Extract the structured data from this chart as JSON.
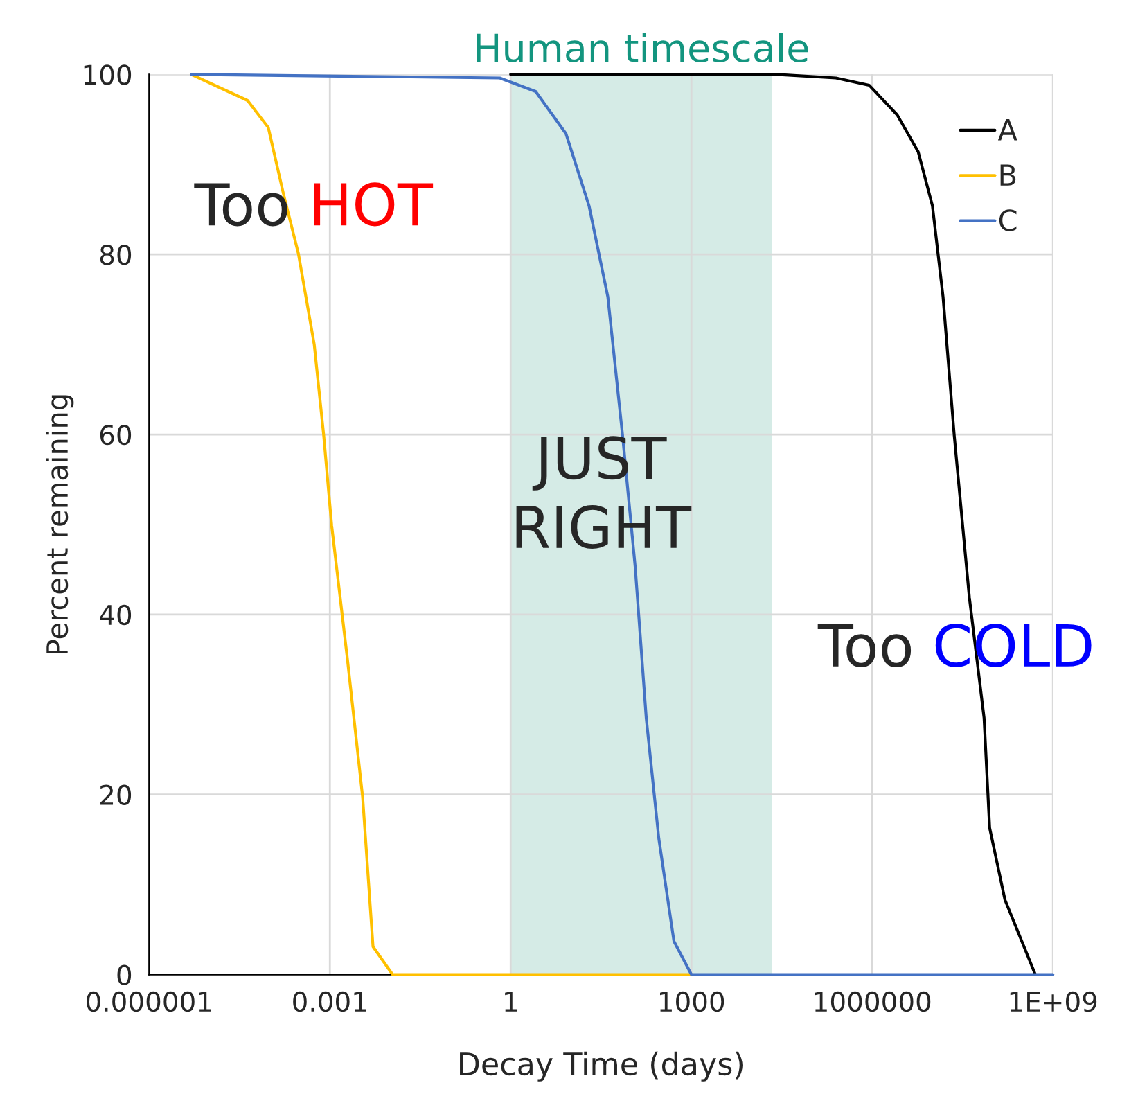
{
  "chart_data": {
    "type": "line",
    "xlabel": "Decay Time (days)",
    "ylabel": "Percent remaining",
    "log": "x",
    "xlim": [
      1e-06,
      1000000000
    ],
    "xticks": [
      {
        "value": 1e-06,
        "label": "0.000001"
      },
      0.001,
      1,
      1000,
      1000000,
      {
        "value": 1000000000,
        "label": "1E+09"
      }
    ],
    "ylim": [
      0,
      100
    ],
    "yticks": [
      0,
      20,
      40,
      60,
      80,
      100
    ],
    "grid": true,
    "legend": "top right",
    "series": [
      {
        "name": "A",
        "color": "#000000",
        "x": [
          1,
          26000,
          250000,
          890000,
          2600000,
          5800000,
          10000000,
          15000000,
          23000000,
          41000000,
          72000000,
          89000000,
          160000000,
          510000000
        ],
        "values": [
          100,
          100,
          99.6,
          98.8,
          95.5,
          91.4,
          85.4,
          75.3,
          59.9,
          41.9,
          28.5,
          16.3,
          8.3,
          0
        ]
      },
      {
        "name": "B",
        "color": "#ffc000",
        "x": [
          5e-06,
          4.3e-05,
          9.5e-05,
          0.00017,
          0.0003,
          0.00055,
          0.00079,
          0.00107,
          0.00195,
          0.0035,
          0.0052,
          0.011,
          1000
        ],
        "values": [
          100,
          97.1,
          94.1,
          86.7,
          80.1,
          70.0,
          59.9,
          49.9,
          35.1,
          19.7,
          3.1,
          0,
          0
        ]
      },
      {
        "name": "C",
        "color": "#4472c4",
        "x": [
          5e-06,
          0.66,
          2.6,
          8.3,
          20,
          41,
          72,
          117,
          178,
          288,
          513,
          1000,
          1000000000
        ],
        "values": [
          100,
          99.6,
          98.1,
          93.4,
          85.4,
          75.3,
          59.9,
          45.2,
          28.5,
          15.1,
          3.7,
          0,
          0
        ]
      }
    ],
    "bands": [
      {
        "axis": "x",
        "from": 1,
        "to": 21900,
        "label": "Human timescale",
        "color": "#d5ebe6"
      }
    ],
    "annotations": [
      "Too HOT",
      "JUST\nRIGHT",
      "Too COLD"
    ]
  }
}
